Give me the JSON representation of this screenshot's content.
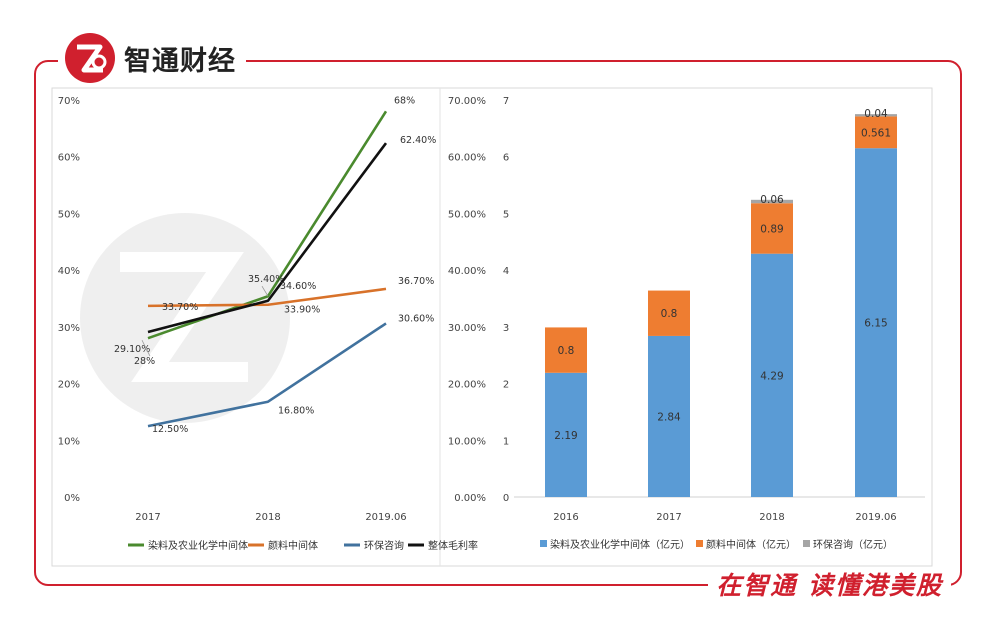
{
  "brand": {
    "title": "智通财经",
    "slogan": "在智通 读懂港美股",
    "accent": "#d0202e"
  },
  "chart_data": [
    {
      "type": "line",
      "categories": [
        "2017",
        "2018",
        "2019.06"
      ],
      "ylim": [
        0,
        70
      ],
      "yticks": [
        "0%",
        "10%",
        "20%",
        "30%",
        "40%",
        "50%",
        "60%",
        "70%"
      ],
      "series": [
        {
          "name": "染料及农业化学中间体",
          "color": "#4a8a2e",
          "values": [
            28,
            35.4,
            68
          ],
          "labels": [
            "28%",
            "35.40%",
            "68%"
          ]
        },
        {
          "name": "颜料中间体",
          "color": "#d8722a",
          "values": [
            33.7,
            33.9,
            36.7
          ],
          "labels": [
            "33.70%",
            "33.90%",
            "36.70%"
          ]
        },
        {
          "name": "环保咨询",
          "color": "#41729e",
          "values": [
            12.5,
            16.8,
            30.6
          ],
          "labels": [
            "12.50%",
            "16.80%",
            "30.60%"
          ]
        },
        {
          "name": "整体毛利率",
          "color": "#111111",
          "values": [
            29.1,
            34.6,
            62.4
          ],
          "labels": [
            "29.10%",
            "34.60%",
            "62.40%"
          ]
        }
      ]
    },
    {
      "type": "bar",
      "stacked": true,
      "categories": [
        "2016",
        "2017",
        "2018",
        "2019.06"
      ],
      "ylim": [
        0,
        7
      ],
      "yticks_left": [
        "0",
        "1",
        "2",
        "3",
        "4",
        "5",
        "6",
        "7"
      ],
      "yticks_right": [
        "0.00%",
        "10.00%",
        "20.00%",
        "30.00%",
        "40.00%",
        "50.00%",
        "60.00%",
        "70.00%"
      ],
      "series": [
        {
          "name": "染料及农业化学中间体（亿元）",
          "color": "#5a9bd5",
          "values": [
            2.19,
            2.84,
            4.29,
            6.15
          ],
          "labels": [
            "2.19",
            "2.84",
            "4.29",
            "6.15"
          ]
        },
        {
          "name": "颜料中间体（亿元）",
          "color": "#ee7d31",
          "values": [
            0.8,
            0.8,
            0.89,
            0.561
          ],
          "labels": [
            "0.8",
            "0.8",
            "0.89",
            "0.561"
          ]
        },
        {
          "name": "环保咨询（亿元）",
          "color": "#a5a5a5",
          "values": [
            0,
            0,
            0.06,
            0.04
          ],
          "labels": [
            "",
            "",
            "0.06",
            "0.04"
          ]
        }
      ]
    }
  ]
}
